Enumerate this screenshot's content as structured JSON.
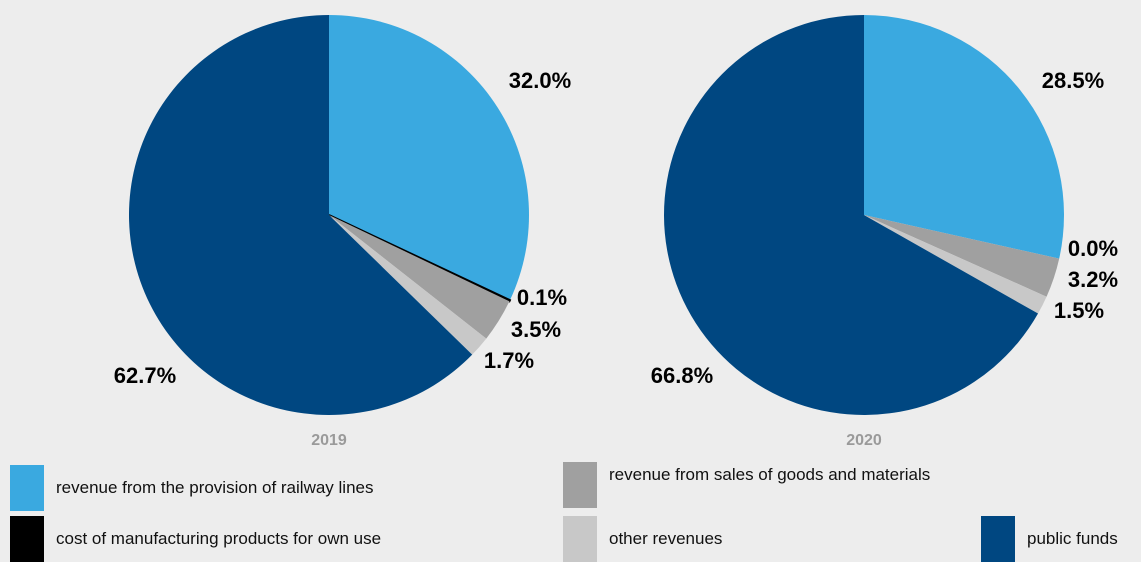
{
  "chart_data": [
    {
      "type": "pie",
      "year_label": "2019",
      "slices": [
        {
          "key": "railway",
          "value": 32.0,
          "label": "32.0%"
        },
        {
          "key": "manufacturing",
          "value": 0.1,
          "label": "0.1%"
        },
        {
          "key": "goods",
          "value": 3.5,
          "label": "3.5%"
        },
        {
          "key": "other",
          "value": 1.7,
          "label": "1.7%"
        },
        {
          "key": "public",
          "value": 62.7,
          "label": "62.7%"
        }
      ]
    },
    {
      "type": "pie",
      "year_label": "2020",
      "slices": [
        {
          "key": "railway",
          "value": 28.5,
          "label": "28.5%"
        },
        {
          "key": "manufacturing",
          "value": 0.0,
          "label": "0.0%"
        },
        {
          "key": "goods",
          "value": 3.2,
          "label": "3.2%"
        },
        {
          "key": "other",
          "value": 1.5,
          "label": "1.5%"
        },
        {
          "key": "public",
          "value": 66.8,
          "label": "66.8%"
        }
      ]
    }
  ],
  "legend": [
    {
      "key": "railway",
      "label": "revenue from the provision of railway lines",
      "color": "#3aa9e0"
    },
    {
      "key": "goods",
      "label": "revenue from sales of goods and materials",
      "color": "#a0a0a0"
    },
    {
      "key": "manufacturing",
      "label": "cost of manufacturing products for own use",
      "color": "#000000"
    },
    {
      "key": "other",
      "label": "other revenues",
      "color": "#c8c8c8"
    },
    {
      "key": "public",
      "label": "public funds",
      "color": "#004781"
    }
  ]
}
